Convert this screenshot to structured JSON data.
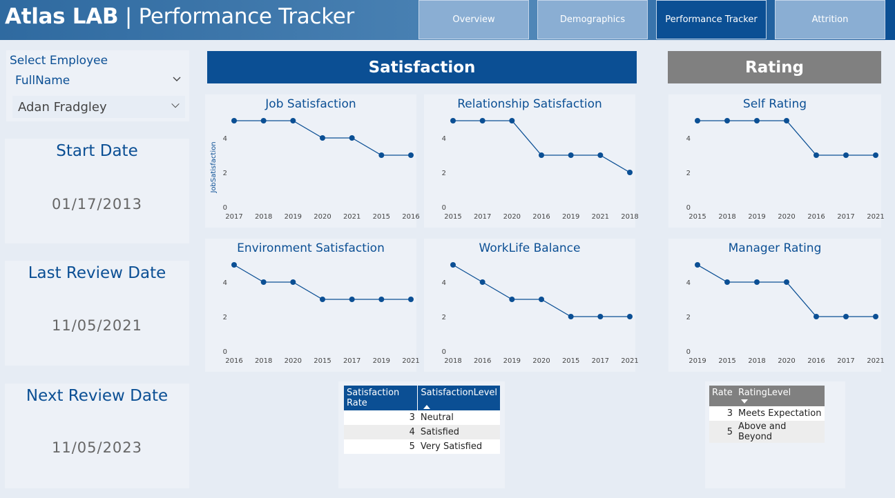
{
  "header": {
    "title_bold": "Atlas LAB",
    "title_sep": "|",
    "title_light": "Performance Tracker",
    "tabs": [
      {
        "label": "Overview",
        "active": false
      },
      {
        "label": "Demographics",
        "active": false
      },
      {
        "label": "Performance Tracker",
        "active": true
      },
      {
        "label": "Attrition",
        "active": false
      }
    ]
  },
  "slicer": {
    "label": "Select Employee",
    "field": "FullName",
    "selected": "Adan Fradgley"
  },
  "dates": {
    "start_title": "Start Date",
    "start_value": "01/17/2013",
    "last_title": "Last Review Date",
    "last_value": "11/05/2021",
    "next_title": "Next Review Date",
    "next_value": "11/05/2023"
  },
  "sections": {
    "satisfaction": "Satisfaction",
    "rating": "Rating"
  },
  "colors": {
    "accent": "#0b4f94",
    "rating_bar": "#808080",
    "line": "#0b4f94"
  },
  "chart_data": [
    {
      "type": "line",
      "title": "Job Satisfaction",
      "ylabel": "JobSatisfaction",
      "x": [
        "2017",
        "2018",
        "2019",
        "2020",
        "2021",
        "2015",
        "2016"
      ],
      "y": [
        5,
        5,
        5,
        4,
        4,
        3,
        3
      ],
      "yticks": [
        0,
        2,
        4
      ],
      "ylim": [
        0,
        5
      ]
    },
    {
      "type": "line",
      "title": "Relationship Satisfaction",
      "ylabel": "",
      "x": [
        "2015",
        "2017",
        "2020",
        "2016",
        "2019",
        "2021",
        "2018"
      ],
      "y": [
        5,
        5,
        5,
        3,
        3,
        3,
        2
      ],
      "yticks": [
        0,
        2,
        4
      ],
      "ylim": [
        0,
        5
      ]
    },
    {
      "type": "line",
      "title": "Self Rating",
      "ylabel": "",
      "x": [
        "2015",
        "2018",
        "2019",
        "2020",
        "2016",
        "2017",
        "2021"
      ],
      "y": [
        5,
        5,
        5,
        5,
        3,
        3,
        3
      ],
      "yticks": [
        0,
        2,
        4
      ],
      "ylim": [
        0,
        5
      ]
    },
    {
      "type": "line",
      "title": "Environment Satisfaction",
      "ylabel": "",
      "x": [
        "2016",
        "2018",
        "2020",
        "2015",
        "2017",
        "2019",
        "2021"
      ],
      "y": [
        5,
        4,
        4,
        3,
        3,
        3,
        3
      ],
      "yticks": [
        0,
        2,
        4
      ],
      "ylim": [
        0,
        5
      ]
    },
    {
      "type": "line",
      "title": "WorkLife Balance",
      "ylabel": "",
      "x": [
        "2018",
        "2016",
        "2019",
        "2020",
        "2015",
        "2017",
        "2021"
      ],
      "y": [
        5,
        4,
        3,
        3,
        2,
        2,
        2
      ],
      "yticks": [
        0,
        2,
        4
      ],
      "ylim": [
        0,
        5
      ]
    },
    {
      "type": "line",
      "title": "Manager Rating",
      "ylabel": "",
      "x": [
        "2019",
        "2015",
        "2018",
        "2020",
        "2016",
        "2017",
        "2021"
      ],
      "y": [
        5,
        4,
        4,
        4,
        2,
        2,
        2
      ],
      "yticks": [
        0,
        2,
        4
      ],
      "ylim": [
        0,
        5
      ]
    }
  ],
  "satisfaction_table": {
    "headers": [
      "Satisfaction Rate",
      "SatisfactionLevel"
    ],
    "rows": [
      [
        "3",
        "Neutral"
      ],
      [
        "4",
        "Satisfied"
      ],
      [
        "5",
        "Very Satisfied"
      ]
    ]
  },
  "rating_table": {
    "headers": [
      "Rate",
      "RatingLevel"
    ],
    "rows": [
      [
        "3",
        "Meets Expectation"
      ],
      [
        "5",
        "Above and Beyond"
      ]
    ]
  }
}
